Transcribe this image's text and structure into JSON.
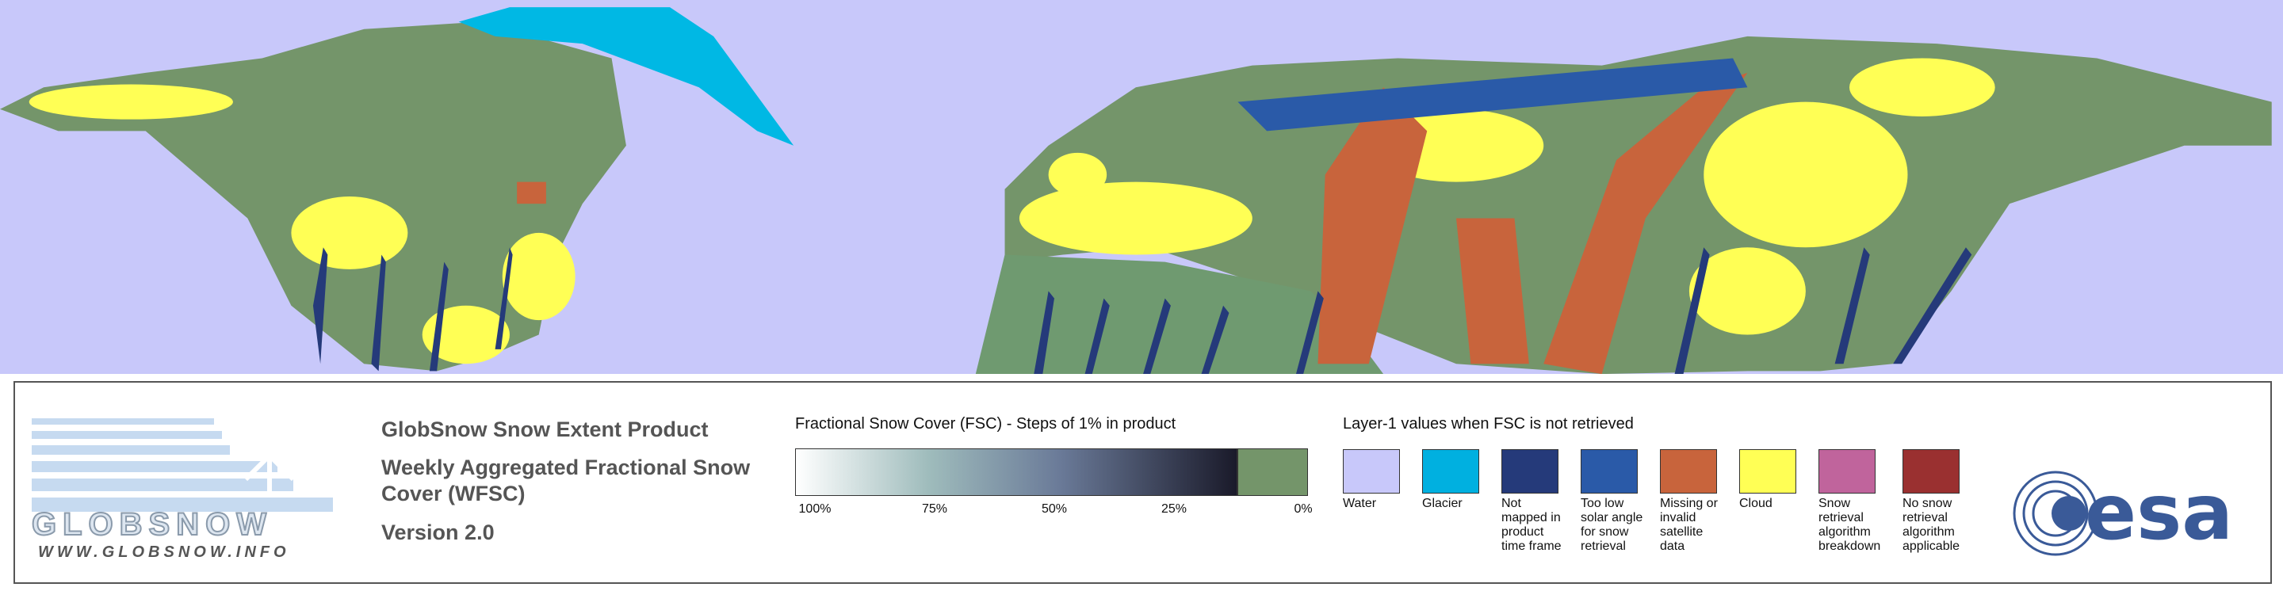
{
  "logo": {
    "name": "GLOBSNOW",
    "url": "WWW.GLOBSNOW.INFO"
  },
  "product": {
    "title": "GlobSnow Snow Extent Product",
    "subtitle": "Weekly Aggregated Fractional Snow Cover (WFSC)",
    "version": "Version 2.0"
  },
  "fsc_scale": {
    "title": "Fractional Snow Cover (FSC) - Steps of 1% in product",
    "labels": [
      "100%",
      "75%",
      "50%",
      "25%",
      "0%"
    ]
  },
  "layer1": {
    "title": "Layer-1 values when FSC is not retrieved",
    "items": [
      {
        "label": "Water",
        "color": "#c8c8fa"
      },
      {
        "label": "Glacier",
        "color": "#00b0e0"
      },
      {
        "label": "Not mapped in product time frame",
        "color": "#253a7a"
      },
      {
        "label": "Too low solar angle for snow retrieval",
        "color": "#2a5aa8"
      },
      {
        "label": "Missing or invalid satellite data",
        "color": "#c8643c"
      },
      {
        "label": "Cloud",
        "color": "#ffff55"
      },
      {
        "label": "Snow retrieval algorithm breakdown",
        "color": "#c0649c"
      },
      {
        "label": "No snow retrieval algorithm applicable",
        "color": "#9a3030"
      }
    ]
  },
  "esa": {
    "name": "esa"
  }
}
